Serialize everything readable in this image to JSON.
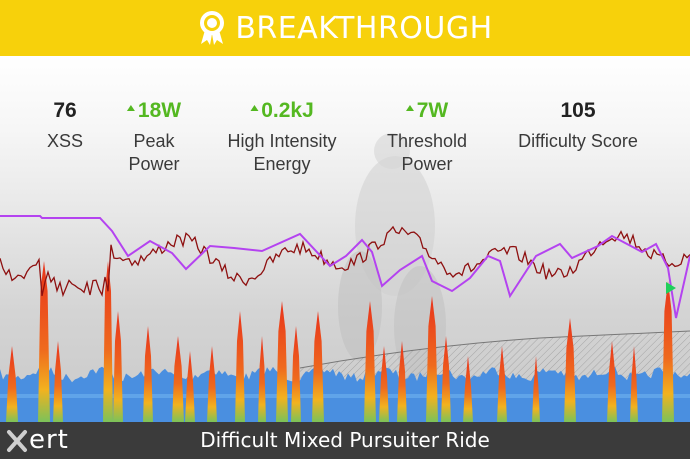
{
  "banner": {
    "title": "BREAKTHROUGH",
    "icon": "award-medal-icon",
    "background": "#f7d10b"
  },
  "metrics": [
    {
      "key": "xss",
      "value": "76",
      "label_lines": [
        "XSS"
      ],
      "trend": "none"
    },
    {
      "key": "peak_power",
      "value": "18W",
      "label_lines": [
        "Peak",
        "Power"
      ],
      "trend": "up"
    },
    {
      "key": "high_intensity_energy",
      "value": "0.2kJ",
      "label_lines": [
        "High Intensity",
        "Energy"
      ],
      "trend": "up"
    },
    {
      "key": "threshold_power",
      "value": "7W",
      "label_lines": [
        "Threshold",
        "Power"
      ],
      "trend": "up"
    },
    {
      "key": "difficulty_score",
      "value": "105",
      "label_lines": [
        "Difficulty Score"
      ],
      "trend": "none"
    }
  ],
  "colors": {
    "trend_up": "#54b821",
    "power_base": "#4a8fe0",
    "power_hot": "#e8331c",
    "mpa_line": "#b443f0",
    "heart_rate_line": "#8e1010",
    "breakthrough_marker": "#1fd05a",
    "footer_background": "#3b3b3b"
  },
  "footer": {
    "logo_text": "ert",
    "logo_icon": "xert-x-logo-icon",
    "ride_title": "Difficult Mixed Pursuiter Ride"
  }
}
